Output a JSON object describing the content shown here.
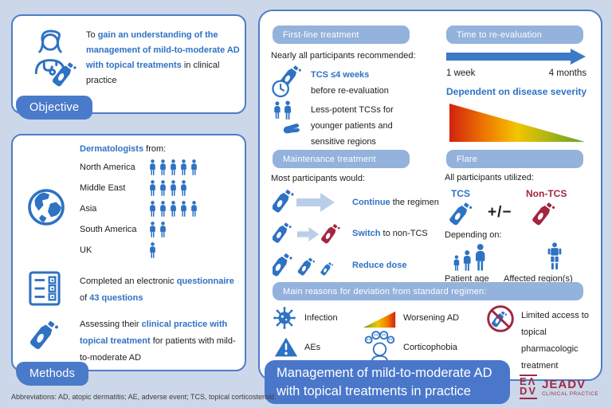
{
  "colors": {
    "background": "#ccd7e9",
    "box_border": "#4d7ec6",
    "pill_blue": "#93b2dc",
    "tag_blue": "#4a7aca",
    "accent_blue": "#2e72c3",
    "dark_red": "#a32540",
    "severity_gradient": [
      "#d1220f",
      "#f07d00",
      "#f2c500",
      "#5fa32a"
    ]
  },
  "objective": {
    "tag": "Objective",
    "segments": [
      {
        "t": "To ",
        "hl": false
      },
      {
        "t": "gain an understanding of the management of mild-to-moderate AD with topical treatments",
        "hl": true
      },
      {
        "t": " in clinical practice",
        "hl": false
      }
    ]
  },
  "methods": {
    "tag": "Methods",
    "dermatologists_segments": [
      {
        "t": "Dermatologists",
        "hl": true
      },
      {
        "t": " from:",
        "hl": false
      }
    ],
    "regions": [
      {
        "name": "North America",
        "count": 5
      },
      {
        "name": "Middle East",
        "count": 4
      },
      {
        "name": "Asia",
        "count": 5
      },
      {
        "name": "South America",
        "count": 2
      },
      {
        "name": "UK",
        "count": 1
      }
    ],
    "questionnaire_segments": [
      {
        "t": "Completed an electronic ",
        "hl": false
      },
      {
        "t": "questionnaire",
        "hl": true
      },
      {
        "t": " of ",
        "hl": false
      },
      {
        "t": "43 questions",
        "hl": true
      }
    ],
    "assessing_segments": [
      {
        "t": "Assessing their ",
        "hl": false
      },
      {
        "t": "clinical practice with topical treatment",
        "hl": true
      },
      {
        "t": " for patients with mild-to-moderate AD",
        "hl": false
      }
    ]
  },
  "first_line": {
    "header": "First-line treatment",
    "intro": "Nearly all participants recommended:",
    "item1_highlight": "TCS ≤4 weeks",
    "item1_rest": "before re-evaluation",
    "item2": "Less-potent TCSs for younger patients and sensitive regions"
  },
  "reevaluation": {
    "header": "Time to re-evaluation",
    "start_label": "1 week",
    "end_label": "4 months",
    "note": "Dependent on disease severity"
  },
  "maintenance": {
    "header": "Maintenance treatment",
    "intro": "Most participants would:",
    "actions": [
      {
        "segments": [
          {
            "t": "Continue",
            "hl": true
          },
          {
            "t": " the regimen",
            "hl": false
          }
        ]
      },
      {
        "segments": [
          {
            "t": "Switch",
            "hl": true
          },
          {
            "t": " to non-TCS",
            "hl": false
          }
        ]
      },
      {
        "segments": [
          {
            "t": "Reduce dose",
            "hl": true
          }
        ]
      }
    ]
  },
  "flare": {
    "header": "Flare",
    "intro": "All participants utilized:",
    "tcs_label": "TCS",
    "plus_minus": "+/−",
    "non_tcs_label": "Non-TCS",
    "depending_label": "Depending on:",
    "factor1": "Patient age",
    "factor2": "Affected region(s)"
  },
  "deviation": {
    "header": "Main reasons for deviation from standard regimen:",
    "reason_infection": "Infection",
    "reason_aes": "AEs",
    "reason_worsening": "Worsening AD",
    "reason_corticophobia": "Corticophobia",
    "reason_limited": "Limited access to topical pharmacologic treatment"
  },
  "banner": {
    "line1": "Management of mild-to-moderate AD",
    "line2": "with topical treatments in practice"
  },
  "logo": {
    "mark_line1": "EΛ",
    "mark_line2": "DV",
    "name": "JEADV",
    "subtitle": "CLINICAL PRACTICE"
  },
  "footnote": "Abbreviations: AD, atopic dermatitis; AE, adverse event; TCS, topical corticosteroid."
}
